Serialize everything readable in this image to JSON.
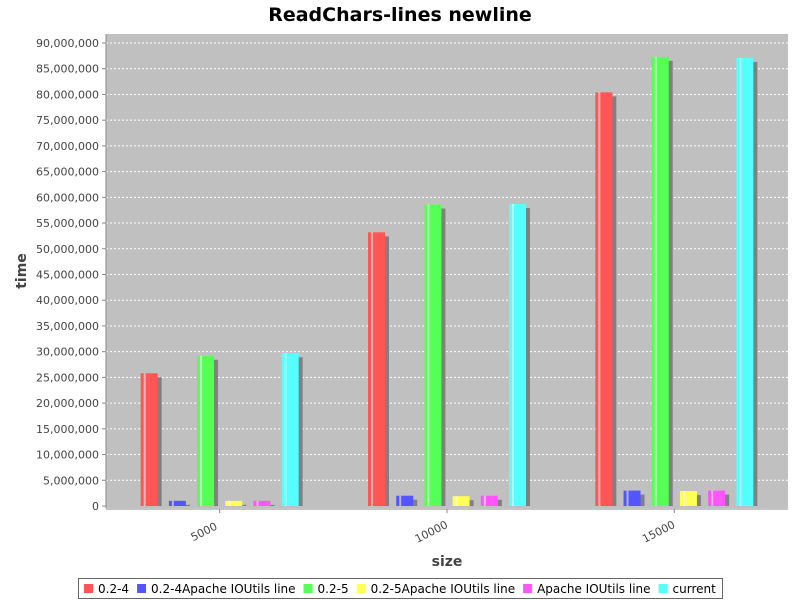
{
  "chart_data": {
    "type": "bar",
    "title": "ReadChars-lines newline",
    "xlabel": "size",
    "ylabel": "time",
    "categories": [
      "5000",
      "10000",
      "15000"
    ],
    "ylim": [
      0,
      91000000
    ],
    "yticks": [
      0,
      5000000,
      10000000,
      15000000,
      20000000,
      25000000,
      30000000,
      35000000,
      40000000,
      45000000,
      50000000,
      55000000,
      60000000,
      65000000,
      70000000,
      75000000,
      80000000,
      85000000,
      90000000
    ],
    "ytick_labels": [
      "0",
      "5,000,000",
      "10,000,000",
      "15,000,000",
      "20,000,000",
      "25,000,000",
      "30,000,000",
      "35,000,000",
      "40,000,000",
      "45,000,000",
      "50,000,000",
      "55,000,000",
      "60,000,000",
      "65,000,000",
      "70,000,000",
      "75,000,000",
      "80,000,000",
      "85,000,000",
      "90,000,000"
    ],
    "grid": true,
    "legend_position": "bottom",
    "series": [
      {
        "name": "0.2-4",
        "color": "#ff5555",
        "values": [
          25800000,
          53200000,
          80400000
        ]
      },
      {
        "name": "0.2-4Apache IOUtils line",
        "color": "#5555ff",
        "values": [
          1000000,
          2000000,
          3000000
        ]
      },
      {
        "name": "0.2-5",
        "color": "#55ff55",
        "values": [
          29200000,
          58600000,
          87300000
        ]
      },
      {
        "name": "0.2-5Apache IOUtils line",
        "color": "#ffff55",
        "values": [
          1000000,
          1900000,
          2900000
        ]
      },
      {
        "name": "Apache IOUtils line",
        "color": "#ff55ff",
        "values": [
          1000000,
          2000000,
          3000000
        ]
      },
      {
        "name": "current",
        "color": "#55ffff",
        "values": [
          29700000,
          58700000,
          87100000
        ]
      }
    ]
  }
}
